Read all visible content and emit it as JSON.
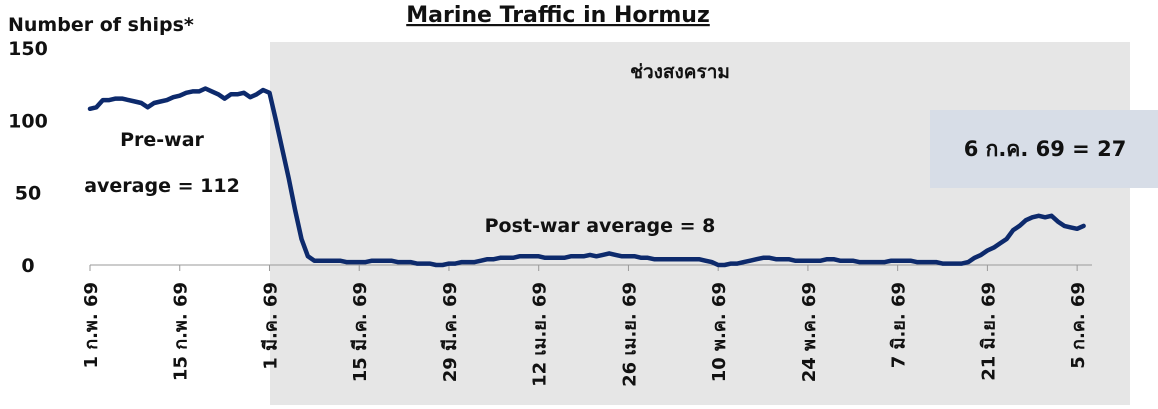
{
  "chart_data": {
    "type": "line",
    "title": "Marine Traffic in Hormuz",
    "y_label": "Number of ships*",
    "annotations": {
      "war": "ช่วงสงคราม",
      "pre_war_1": "Pre-war",
      "pre_war_2": "average = 112",
      "post_war": "Post-war average = 8",
      "latest": "6 ก.ค. 69 = 27"
    },
    "categories": [
      "1 ก.พ. 69",
      null,
      null,
      null,
      null,
      null,
      null,
      null,
      null,
      null,
      null,
      null,
      null,
      null,
      "15 ก.พ. 69",
      null,
      null,
      null,
      null,
      null,
      null,
      null,
      null,
      null,
      null,
      null,
      null,
      null,
      "1 มี.ค. 69",
      null,
      null,
      null,
      null,
      null,
      null,
      null,
      null,
      null,
      null,
      null,
      null,
      null,
      "15 มี.ค. 69",
      null,
      null,
      null,
      null,
      null,
      null,
      null,
      null,
      null,
      null,
      null,
      null,
      null,
      "29 มี.ค. 69",
      null,
      null,
      null,
      null,
      null,
      null,
      null,
      null,
      null,
      null,
      null,
      null,
      null,
      "12 เม.ย. 69",
      null,
      null,
      null,
      null,
      null,
      null,
      null,
      null,
      null,
      null,
      null,
      null,
      null,
      "26 เม.ย. 69",
      null,
      null,
      null,
      null,
      null,
      null,
      null,
      null,
      null,
      null,
      null,
      null,
      null,
      "10 พ.ค. 69",
      null,
      null,
      null,
      null,
      null,
      null,
      null,
      null,
      null,
      null,
      null,
      null,
      null,
      "24 พ.ค. 69",
      null,
      null,
      null,
      null,
      null,
      null,
      null,
      null,
      null,
      null,
      null,
      null,
      null,
      "7 มิ.ย. 69",
      null,
      null,
      null,
      null,
      null,
      null,
      null,
      null,
      null,
      null,
      null,
      null,
      null,
      "21 มิ.ย. 69",
      null,
      null,
      null,
      null,
      null,
      null,
      null,
      null,
      null,
      null,
      null,
      null,
      null,
      "5 ก.ค. 69",
      null
    ],
    "series": [
      {
        "name": "Number of ships",
        "color": "#0d2a6c",
        "values": [
          108,
          109,
          114,
          114,
          115,
          115,
          114,
          113,
          112,
          109,
          112,
          113,
          114,
          116,
          117,
          119,
          120,
          120,
          122,
          120,
          118,
          115,
          118,
          118,
          119,
          116,
          118,
          121,
          119,
          100,
          80,
          60,
          38,
          18,
          6,
          3,
          3,
          3,
          3,
          3,
          2,
          2,
          2,
          2,
          3,
          3,
          3,
          3,
          2,
          2,
          2,
          1,
          1,
          1,
          0,
          0,
          1,
          1,
          2,
          2,
          2,
          3,
          4,
          4,
          5,
          5,
          5,
          6,
          6,
          6,
          6,
          5,
          5,
          5,
          5,
          6,
          6,
          6,
          7,
          6,
          7,
          8,
          7,
          6,
          6,
          6,
          5,
          5,
          4,
          4,
          4,
          4,
          4,
          4,
          4,
          4,
          3,
          2,
          0,
          0,
          1,
          1,
          2,
          3,
          4,
          5,
          5,
          4,
          4,
          4,
          3,
          3,
          3,
          3,
          3,
          4,
          4,
          3,
          3,
          3,
          2,
          2,
          2,
          2,
          2,
          3,
          3,
          3,
          3,
          2,
          2,
          2,
          2,
          1,
          1,
          1,
          1,
          2,
          5,
          7,
          10,
          12,
          15,
          18,
          24,
          27,
          31,
          33,
          34,
          33,
          34,
          30,
          27,
          26,
          25,
          27
        ]
      }
    ],
    "ylim": [
      0,
      150
    ],
    "yticks": [
      0,
      50,
      100,
      150
    ],
    "grid": false
  }
}
